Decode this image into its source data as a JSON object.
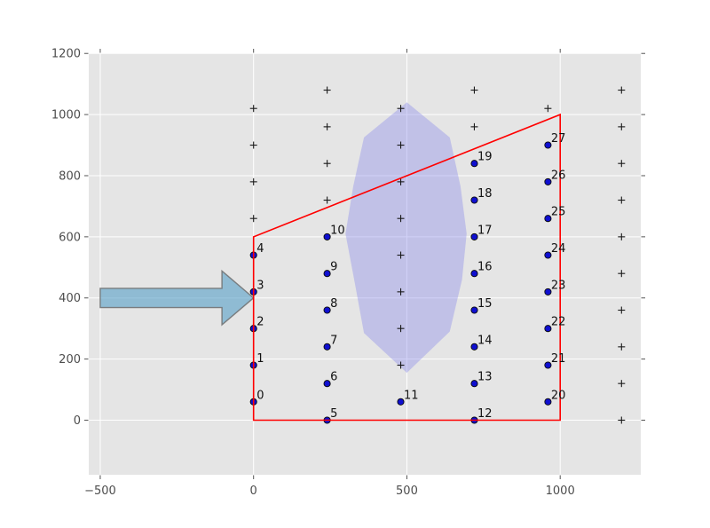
{
  "figure": {
    "background": "#ffffff",
    "plot_background": "#e5e5e5",
    "grid_color": "#ffffff",
    "tick_mark_color": "#555555",
    "tick_label_color": "#4d4d4d",
    "annotation_color": "#111111",
    "plus_color": "#1a1a1a",
    "dot_fill": "#0f0fd0",
    "dot_edge": "#0a0a0a",
    "red_line_color": "#ff0000",
    "blob_fill": "rgba(140,140,235,0.40)",
    "arrow_fill": "rgba(97,164,201,0.65)",
    "arrow_edge": "rgba(110,110,110,0.85)"
  },
  "chart_data": {
    "type": "scatter",
    "title": "",
    "xlabel": "",
    "ylabel": "",
    "grid": true,
    "xlim": [
      -537,
      1263
    ],
    "ylim": [
      -178,
      1200
    ],
    "x_ticks": [
      {
        "label": "−500",
        "value": -500
      },
      {
        "label": "0",
        "value": 0
      },
      {
        "label": "500",
        "value": 500
      },
      {
        "label": "1000",
        "value": 1000
      }
    ],
    "y_ticks": [
      {
        "label": "0",
        "value": 0
      },
      {
        "label": "200",
        "value": 200
      },
      {
        "label": "400",
        "value": 400
      },
      {
        "label": "600",
        "value": 600
      },
      {
        "label": "800",
        "value": 800
      },
      {
        "label": "1000",
        "value": 1000
      },
      {
        "label": "1200",
        "value": 1200
      }
    ],
    "numbered_points": [
      {
        "label": "0",
        "x": 0,
        "y": 60
      },
      {
        "label": "1",
        "x": 0,
        "y": 180
      },
      {
        "label": "2",
        "x": 0,
        "y": 300
      },
      {
        "label": "3",
        "x": 0,
        "y": 420
      },
      {
        "label": "4",
        "x": 0,
        "y": 540
      },
      {
        "label": "5",
        "x": 240,
        "y": 0
      },
      {
        "label": "6",
        "x": 240,
        "y": 120
      },
      {
        "label": "7",
        "x": 240,
        "y": 240
      },
      {
        "label": "8",
        "x": 240,
        "y": 360
      },
      {
        "label": "9",
        "x": 240,
        "y": 480
      },
      {
        "label": "10",
        "x": 240,
        "y": 600
      },
      {
        "label": "11",
        "x": 480,
        "y": 60
      },
      {
        "label": "12",
        "x": 720,
        "y": 0
      },
      {
        "label": "13",
        "x": 720,
        "y": 120
      },
      {
        "label": "14",
        "x": 720,
        "y": 240
      },
      {
        "label": "15",
        "x": 720,
        "y": 360
      },
      {
        "label": "16",
        "x": 720,
        "y": 480
      },
      {
        "label": "17",
        "x": 720,
        "y": 600
      },
      {
        "label": "18",
        "x": 720,
        "y": 720
      },
      {
        "label": "19",
        "x": 720,
        "y": 840
      },
      {
        "label": "20",
        "x": 960,
        "y": 60
      },
      {
        "label": "21",
        "x": 960,
        "y": 180
      },
      {
        "label": "22",
        "x": 960,
        "y": 300
      },
      {
        "label": "23",
        "x": 960,
        "y": 420
      },
      {
        "label": "24",
        "x": 960,
        "y": 540
      },
      {
        "label": "25",
        "x": 960,
        "y": 660
      },
      {
        "label": "26",
        "x": 960,
        "y": 780
      },
      {
        "label": "27",
        "x": 960,
        "y": 900
      }
    ],
    "plus_points": [
      [
        0,
        660
      ],
      [
        0,
        780
      ],
      [
        0,
        900
      ],
      [
        0,
        1020
      ],
      [
        240,
        720
      ],
      [
        240,
        840
      ],
      [
        240,
        960
      ],
      [
        240,
        1080
      ],
      [
        480,
        180
      ],
      [
        480,
        300
      ],
      [
        480,
        420
      ],
      [
        480,
        540
      ],
      [
        480,
        660
      ],
      [
        480,
        780
      ],
      [
        480,
        900
      ],
      [
        480,
        1020
      ],
      [
        720,
        960
      ],
      [
        720,
        1080
      ],
      [
        960,
        1020
      ],
      [
        1200,
        0
      ],
      [
        1200,
        120
      ],
      [
        1200,
        240
      ],
      [
        1200,
        360
      ],
      [
        1200,
        480
      ],
      [
        1200,
        600
      ],
      [
        1200,
        720
      ],
      [
        1200,
        840
      ],
      [
        1200,
        960
      ],
      [
        1200,
        1080
      ]
    ],
    "red_polygon": [
      [
        0,
        0
      ],
      [
        0,
        600
      ],
      [
        1000,
        1000
      ],
      [
        1000,
        0
      ]
    ],
    "blob_polygon": [
      [
        500,
        1040
      ],
      [
        640,
        925
      ],
      [
        675,
        765
      ],
      [
        695,
        610
      ],
      [
        680,
        460
      ],
      [
        640,
        290
      ],
      [
        500,
        155
      ],
      [
        360,
        285
      ],
      [
        330,
        450
      ],
      [
        300,
        610
      ],
      [
        325,
        765
      ],
      [
        360,
        925
      ]
    ],
    "arrow_polygon": [
      [
        -500,
        431.5
      ],
      [
        -103,
        431.5
      ],
      [
        -103,
        488
      ],
      [
        0,
        400
      ],
      [
        -103,
        312
      ],
      [
        -103,
        368.5
      ],
      [
        -500,
        368.5
      ]
    ]
  }
}
